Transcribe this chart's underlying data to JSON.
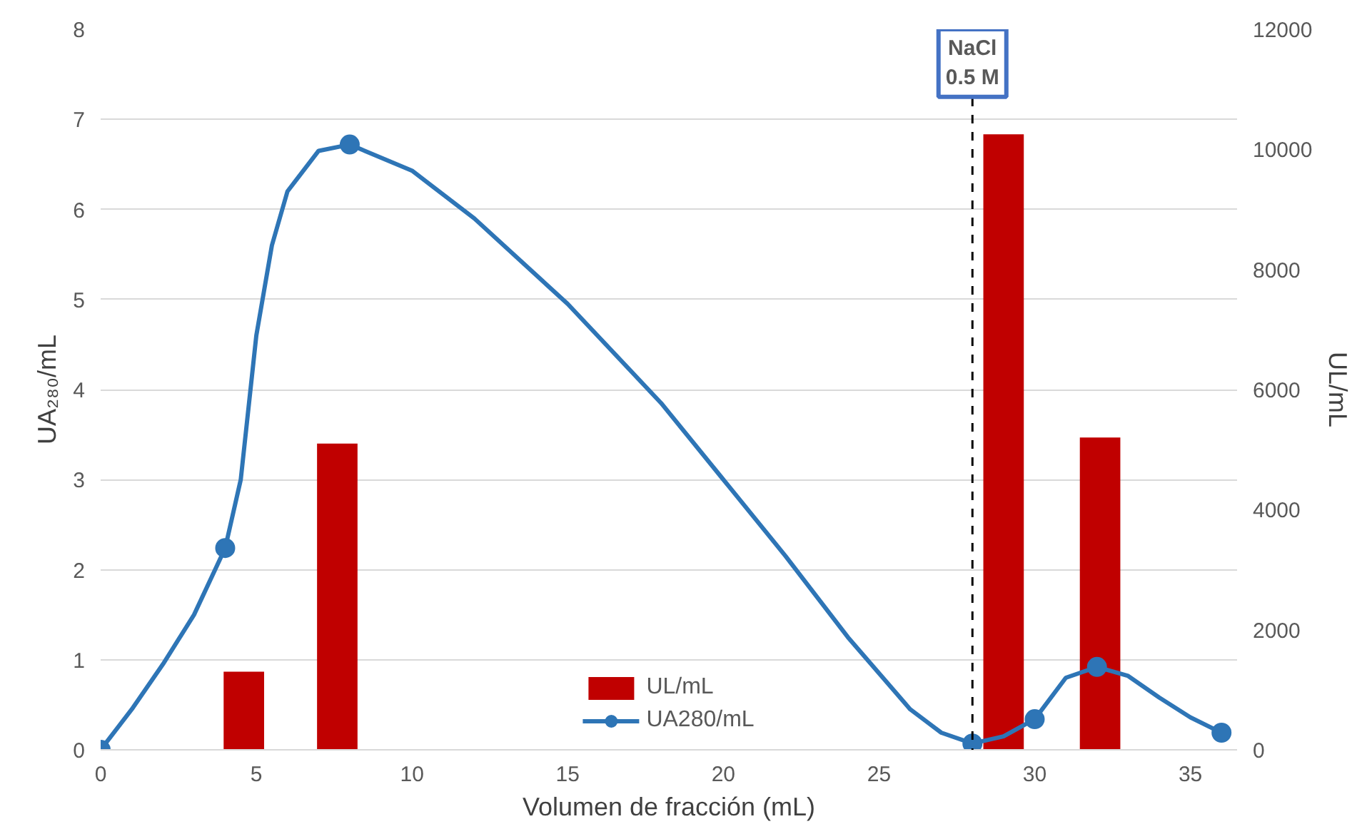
{
  "chart_data": {
    "type": "line",
    "xlabel": "Volumen de fracción (mL)",
    "ylabel": "UA₂₈₀/mL",
    "y2label": "UL/mL",
    "xlim": [
      0,
      36.5
    ],
    "xticks": [
      0,
      5,
      10,
      15,
      20,
      25,
      30,
      35
    ],
    "ylim": [
      0,
      8
    ],
    "yticks": [
      0,
      1,
      2,
      3,
      4,
      5,
      6,
      7,
      8
    ],
    "y2lim": [
      0,
      12000
    ],
    "y2ticks": [
      0,
      2000,
      4000,
      6000,
      8000,
      10000,
      12000
    ],
    "series": [
      {
        "name": "UL/mL",
        "type": "bar",
        "axis": "y2",
        "color": "#c00000",
        "x": [
          4.6,
          7.6,
          29,
          32.1
        ],
        "values": [
          1300,
          5100,
          10250,
          5200
        ]
      },
      {
        "name": "UA280/mL",
        "color": "#2e75b6",
        "x": [
          0,
          1,
          2,
          3,
          4,
          4.5,
          5,
          5.5,
          6,
          7,
          8,
          10,
          12,
          15,
          18,
          20,
          22,
          24,
          26,
          27,
          28,
          29,
          30,
          31,
          32,
          33,
          34,
          35,
          36
        ],
        "values": [
          0,
          0.45,
          0.95,
          1.5,
          2.24,
          3.0,
          4.6,
          5.6,
          6.2,
          6.65,
          6.72,
          6.43,
          5.9,
          4.95,
          3.85,
          3.0,
          2.15,
          1.25,
          0.45,
          0.19,
          0.07,
          0.15,
          0.34,
          0.8,
          0.92,
          0.82,
          0.58,
          0.36,
          0.19
        ]
      },
      {
        "type": "scatter",
        "color": "#2e75b6",
        "marker": "circle",
        "x": [
          0,
          4,
          8,
          28,
          30,
          32,
          36
        ],
        "values": [
          0,
          2.24,
          6.72,
          0.07,
          0.34,
          0.92,
          0.19
        ]
      }
    ],
    "ref_lines": [
      {
        "axis": "x",
        "value": 28,
        "label": "NaCl\n0.5 M",
        "color": "#000000",
        "line_style": "dashed"
      }
    ],
    "grid": "y",
    "legend": "bottom"
  }
}
